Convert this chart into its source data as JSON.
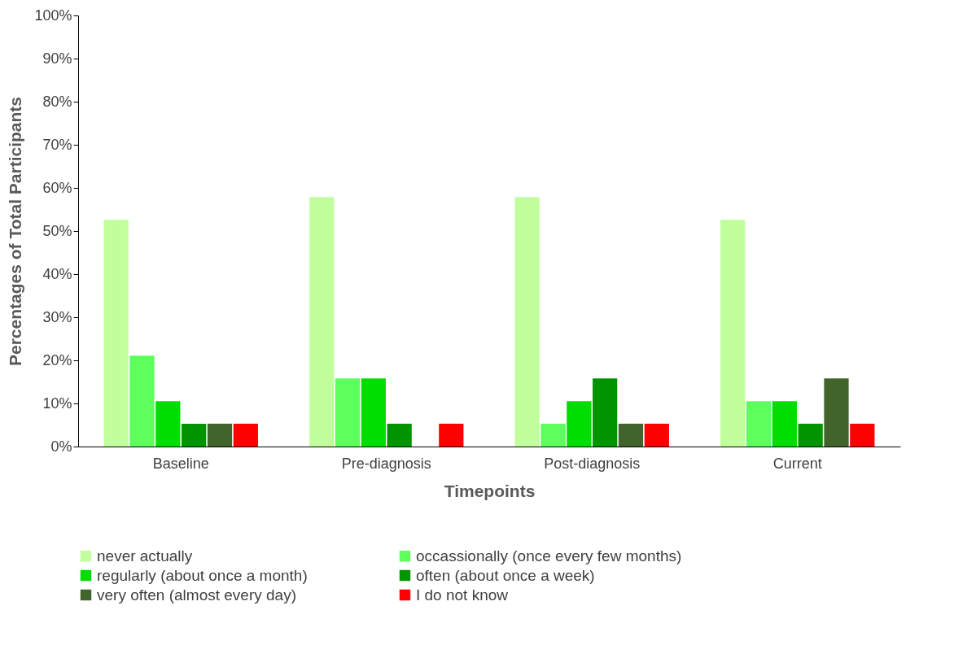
{
  "chart_data": {
    "type": "bar",
    "xlabel": "Timepoints",
    "ylabel": "Percentages of Total Participants",
    "categories": [
      "Baseline",
      "Pre-diagnosis",
      "Post-diagnosis",
      "Current"
    ],
    "series": [
      {
        "name": "never actually",
        "color": "#c0ff9c",
        "values": [
          52.6,
          57.9,
          57.9,
          52.6
        ]
      },
      {
        "name": "occassionally (once every few months)",
        "color": "#5cff5c",
        "values": [
          21.1,
          15.8,
          5.3,
          10.5
        ]
      },
      {
        "name": "regularly (about once a month)",
        "color": "#00dd00",
        "values": [
          10.5,
          15.8,
          10.5,
          10.5
        ]
      },
      {
        "name": "often (about once a week)",
        "color": "#009400",
        "values": [
          5.3,
          5.3,
          15.8,
          5.3
        ]
      },
      {
        "name": "very often (almost every day)",
        "color": "#41642b",
        "values": [
          5.3,
          0,
          5.3,
          15.8
        ]
      },
      {
        "name": "I do not know",
        "color": "#ff0000",
        "values": [
          5.3,
          5.3,
          5.3,
          5.3
        ]
      }
    ],
    "ylim": [
      0,
      100
    ],
    "yticks": [
      {
        "value": 0,
        "label": "0%"
      },
      {
        "value": 10,
        "label": "10%"
      },
      {
        "value": 20,
        "label": "20%"
      },
      {
        "value": 30,
        "label": "30%"
      },
      {
        "value": 40,
        "label": "40%"
      },
      {
        "value": 50,
        "label": "50%"
      },
      {
        "value": 60,
        "label": "60%"
      },
      {
        "value": 70,
        "label": "70%"
      },
      {
        "value": 80,
        "label": "80%"
      },
      {
        "value": 90,
        "label": "90%"
      },
      {
        "value": 100,
        "label": "100%"
      }
    ],
    "grid": false,
    "legend": "bottom"
  }
}
